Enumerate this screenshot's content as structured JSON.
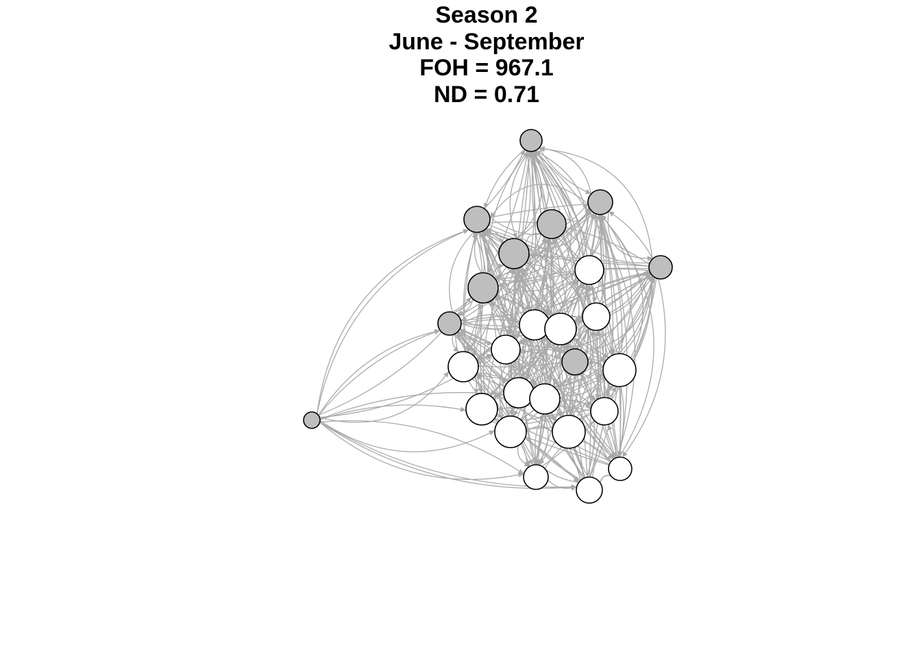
{
  "title": {
    "line1": "Season 2",
    "line2": "June - September",
    "line3": "FOH = 967.1",
    "line4": "ND = 0.71"
  },
  "colors": {
    "background": "#ffffff",
    "edge": "#a9a9a9",
    "node_stroke": "#000000",
    "node_grey": "#bebebe",
    "node_white": "#ffffff",
    "title": "#000000"
  },
  "network": {
    "node_count": 30,
    "grey_nodes": 11,
    "white_nodes": 19,
    "edges": "dense directed network with curved arrows"
  }
}
